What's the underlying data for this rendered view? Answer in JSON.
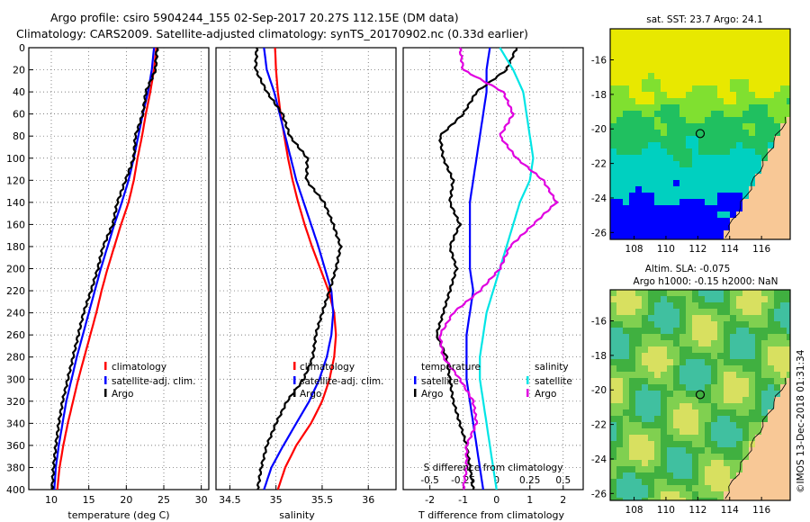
{
  "title_line1": "Argo profile: csiro 5904244_155 02-Sep-2017 20.27S 112.15E (DM data)",
  "title_line2": "Climatology: CARS2009. Satellite-adjusted climatology: synTS_20170902.nc (0.33d earlier)",
  "sst_title": "sat. SST: 23.7 Argo: 24.1",
  "sla_title1": "Altim. SLA: -0.075",
  "sla_title2": "Argo h1000: -0.15 h2000: NaN",
  "watermark": "©IMOS 13-Dec-2018 01:31:34",
  "colors": {
    "climatology": "#ff0000",
    "satellite": "#0000ff",
    "argo": "#000000",
    "sat_salinity": "#00e5e5",
    "argo_salinity": "#e000e0"
  },
  "chart_data": [
    {
      "type": "line",
      "name": "temperature",
      "xlabel": "temperature (deg C)",
      "xlim": [
        7,
        31
      ],
      "xticks": [
        "10",
        "15",
        "20",
        "25",
        "30"
      ],
      "ylim": [
        0,
        400
      ],
      "yticks": [
        "0",
        "20",
        "40",
        "60",
        "80",
        "100",
        "120",
        "140",
        "160",
        "180",
        "200",
        "220",
        "240",
        "260",
        "280",
        "300",
        "320",
        "340",
        "360",
        "380",
        "400"
      ],
      "legend": [
        "climatology",
        "satellite-adj. clim.",
        "Argo"
      ],
      "series": [
        {
          "name": "climatology",
          "color": "#ff0000",
          "x": [
            24.0,
            23.7,
            23.2,
            22.6,
            22.1,
            21.5,
            21.0,
            20.3,
            19.3,
            18.4,
            17.5,
            16.7,
            16.0,
            15.2,
            14.4,
            13.6,
            12.9,
            12.2,
            11.6,
            11.1,
            10.8
          ],
          "depth": [
            0,
            20,
            40,
            60,
            80,
            100,
            120,
            140,
            160,
            180,
            200,
            220,
            240,
            260,
            280,
            300,
            320,
            340,
            360,
            380,
            400
          ]
        },
        {
          "name": "satellite-adj. clim.",
          "color": "#0000ff",
          "x": [
            23.7,
            23.4,
            22.9,
            22.2,
            21.6,
            21.0,
            20.3,
            19.4,
            18.4,
            17.5,
            16.6,
            15.8,
            15.0,
            14.2,
            13.4,
            12.7,
            12.0,
            11.5,
            11.0,
            10.6,
            10.4
          ],
          "depth": [
            0,
            20,
            40,
            60,
            80,
            100,
            120,
            140,
            160,
            180,
            200,
            220,
            240,
            260,
            280,
            300,
            320,
            340,
            360,
            380,
            400
          ]
        },
        {
          "name": "Argo",
          "color": "#000000",
          "x": [
            24.1,
            23.9,
            22.6,
            22.2,
            21.2,
            21.0,
            19.9,
            18.8,
            18.2,
            16.9,
            16.2,
            15.3,
            14.3,
            13.6,
            12.9,
            12.2,
            11.5,
            11.0,
            10.6,
            10.3,
            10.1
          ],
          "depth": [
            0,
            20,
            40,
            60,
            80,
            100,
            120,
            140,
            160,
            180,
            200,
            220,
            240,
            260,
            280,
            300,
            320,
            340,
            360,
            380,
            400
          ]
        }
      ]
    },
    {
      "type": "line",
      "name": "salinity",
      "xlabel": "salinity",
      "xlim": [
        34.35,
        36.3
      ],
      "xticks": [
        "34.5",
        "35",
        "35.5",
        "36"
      ],
      "ylim": [
        0,
        400
      ],
      "legend": [
        "climatology",
        "satellite-adj. clim.",
        "Argo"
      ],
      "series": [
        {
          "name": "climatology",
          "color": "#ff0000",
          "x": [
            34.99,
            35.0,
            35.02,
            35.05,
            35.09,
            35.13,
            35.18,
            35.24,
            35.31,
            35.39,
            35.48,
            35.57,
            35.63,
            35.65,
            35.63,
            35.58,
            35.5,
            35.38,
            35.22,
            35.1,
            35.02
          ],
          "depth": [
            0,
            20,
            40,
            60,
            80,
            100,
            120,
            140,
            160,
            180,
            200,
            220,
            240,
            260,
            280,
            300,
            320,
            340,
            360,
            380,
            400
          ]
        },
        {
          "name": "satellite-adj. clim.",
          "color": "#0000ff",
          "x": [
            34.87,
            34.9,
            34.98,
            35.04,
            35.1,
            35.16,
            35.22,
            35.3,
            35.38,
            35.46,
            35.53,
            35.6,
            35.62,
            35.6,
            35.55,
            35.47,
            35.36,
            35.22,
            35.08,
            34.95,
            34.87
          ],
          "depth": [
            0,
            20,
            40,
            60,
            80,
            100,
            120,
            140,
            160,
            180,
            200,
            220,
            240,
            260,
            280,
            300,
            320,
            340,
            360,
            380,
            400
          ]
        },
        {
          "name": "Argo",
          "color": "#000000",
          "x": [
            34.79,
            34.78,
            34.9,
            35.07,
            35.15,
            35.34,
            35.33,
            35.52,
            35.62,
            35.7,
            35.65,
            35.58,
            35.5,
            35.43,
            35.4,
            35.3,
            35.12,
            35.0,
            34.9,
            34.84,
            34.8
          ],
          "depth": [
            0,
            20,
            40,
            60,
            80,
            100,
            120,
            140,
            160,
            180,
            200,
            220,
            240,
            260,
            280,
            300,
            320,
            340,
            360,
            380,
            400
          ]
        }
      ]
    },
    {
      "type": "line",
      "name": "difference",
      "xlabel": "T difference from climatology",
      "top_axis_label": "S difference from climatology",
      "xlim": [
        -2.8,
        2.6
      ],
      "xticks": [
        "-2",
        "-1",
        "0",
        "1",
        "2"
      ],
      "top_xticks": [
        "-0.5",
        "-0.25",
        "0",
        "0.25",
        "0.5"
      ],
      "ylim": [
        0,
        400
      ],
      "legend_temperature": {
        "header": "temperature",
        "items": [
          "satellite",
          "Argo"
        ]
      },
      "legend_salinity": {
        "header": "salinity",
        "items": [
          "satellite",
          "Argo"
        ]
      },
      "series": [
        {
          "name": "temperature satellite",
          "color": "#0000ff",
          "x": [
            -0.2,
            -0.3,
            -0.3,
            -0.4,
            -0.5,
            -0.6,
            -0.7,
            -0.8,
            -0.8,
            -0.8,
            -0.8,
            -0.7,
            -0.8,
            -0.9,
            -0.9,
            -0.9,
            -0.8,
            -0.7,
            -0.6,
            -0.5,
            -0.4
          ],
          "depth": [
            0,
            20,
            40,
            60,
            80,
            100,
            120,
            140,
            160,
            180,
            200,
            220,
            240,
            260,
            280,
            300,
            320,
            340,
            360,
            380,
            400
          ]
        },
        {
          "name": "temperature Argo",
          "color": "#000000",
          "x": [
            0.6,
            0.3,
            -0.6,
            -1.0,
            -1.7,
            -1.6,
            -1.3,
            -1.4,
            -1.1,
            -1.4,
            -1.2,
            -1.4,
            -1.6,
            -1.8,
            -1.5,
            -1.4,
            -1.3,
            -1.1,
            -0.9,
            -0.8,
            -0.7
          ],
          "depth": [
            0,
            20,
            40,
            60,
            80,
            100,
            120,
            140,
            160,
            180,
            200,
            220,
            240,
            260,
            280,
            300,
            320,
            340,
            360,
            380,
            400
          ]
        },
        {
          "name": "salinity satellite",
          "color": "#00e5e5",
          "x": [
            0.1,
            0.5,
            0.8,
            0.9,
            1.0,
            1.1,
            1.0,
            0.7,
            0.5,
            0.3,
            0.1,
            -0.1,
            -0.3,
            -0.4,
            -0.5,
            -0.5,
            -0.4,
            -0.3,
            -0.2,
            -0.1,
            0.0
          ],
          "depth": [
            0,
            20,
            40,
            60,
            80,
            100,
            120,
            140,
            160,
            180,
            200,
            220,
            240,
            260,
            280,
            300,
            320,
            340,
            360,
            380,
            400
          ]
        },
        {
          "name": "salinity Argo",
          "color": "#e000e0",
          "x": [
            -1.1,
            -1.0,
            0.2,
            0.5,
            0.1,
            0.6,
            1.4,
            1.8,
            1.1,
            0.4,
            0.1,
            -0.5,
            -1.3,
            -1.7,
            -1.6,
            -1.1,
            -0.7,
            -0.6,
            -0.9,
            -0.9,
            -1.0
          ],
          "depth": [
            0,
            20,
            40,
            60,
            80,
            100,
            120,
            140,
            160,
            180,
            200,
            220,
            240,
            260,
            280,
            300,
            320,
            340,
            360,
            380,
            400
          ]
        }
      ]
    },
    {
      "type": "heatmap",
      "name": "sst-map",
      "title": "sat. SST: 23.7 Argo: 24.1",
      "xlim": [
        106.5,
        117.8
      ],
      "ylim": [
        -26.4,
        -14.2
      ],
      "xticks": [
        "108",
        "110",
        "112",
        "114",
        "116"
      ],
      "yticks": [
        "-16",
        "-18",
        "-20",
        "-22",
        "-24",
        "-26"
      ],
      "argo_position": {
        "lon": 112.15,
        "lat": -20.27
      },
      "colors": {
        "warm": "#e8e800",
        "mid": "#80e030",
        "cool": "#20c060",
        "cold": "#00d0c0",
        "colder": "#0000ff",
        "land": "#f8c896"
      }
    },
    {
      "type": "heatmap",
      "name": "sla-map",
      "title": "Altim. SLA: -0.075",
      "subtitle": "Argo h1000: -0.15 h2000: NaN",
      "xlim": [
        106.5,
        117.8
      ],
      "ylim": [
        -26.4,
        -14.2
      ],
      "xticks": [
        "108",
        "110",
        "112",
        "114",
        "116"
      ],
      "yticks": [
        "-16",
        "-18",
        "-20",
        "-22",
        "-24",
        "-26"
      ],
      "argo_position": {
        "lon": 112.15,
        "lat": -20.27
      },
      "colors": {
        "high": "#d8e060",
        "mid": "#80d050",
        "low": "#40b040",
        "lower": "#40c0a0",
        "land": "#f8c896"
      }
    }
  ]
}
